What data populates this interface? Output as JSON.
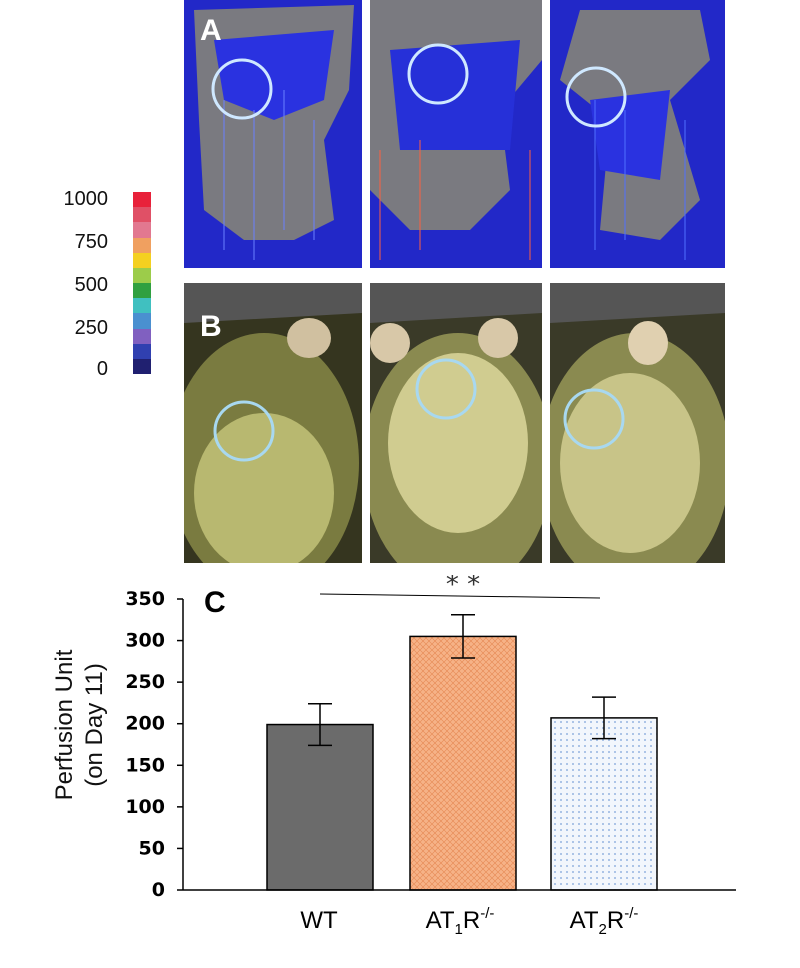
{
  "panels": {
    "a_label": "A",
    "b_label": "B",
    "c_label": "C"
  },
  "color_scale": {
    "ticks": [
      "1000",
      "750",
      "500",
      "250",
      "0"
    ],
    "colors": [
      "#e8213a",
      "#e05066",
      "#e27890",
      "#f0a060",
      "#f4d020",
      "#9ccc4a",
      "#30a040",
      "#40c0c0",
      "#4a90d0",
      "#8060c0",
      "#3040b0",
      "#202070"
    ]
  },
  "chart_data": {
    "type": "bar",
    "categories": [
      "WT",
      "AT1R-/-",
      "AT2R-/-"
    ],
    "values": [
      199,
      305,
      207
    ],
    "errors": [
      25,
      26,
      25
    ],
    "colors": [
      "#6b6b6b",
      "#f4a673",
      "#eef3fb"
    ],
    "ylabel": [
      "Perfusion Unit",
      "(on Day 11)"
    ],
    "ylim": [
      0,
      350
    ],
    "yticks": [
      "0",
      "50",
      "100",
      "150",
      "200",
      "250",
      "300",
      "350"
    ],
    "significance": "* *",
    "labels": {
      "wt": "WT",
      "at1_base": "AT",
      "at1_sub": "1",
      "at1_main": "R",
      "at1_sup": "-/-",
      "at2_base": "AT",
      "at2_sub": "2",
      "at2_main": "R",
      "at2_sup": "-/-"
    }
  }
}
